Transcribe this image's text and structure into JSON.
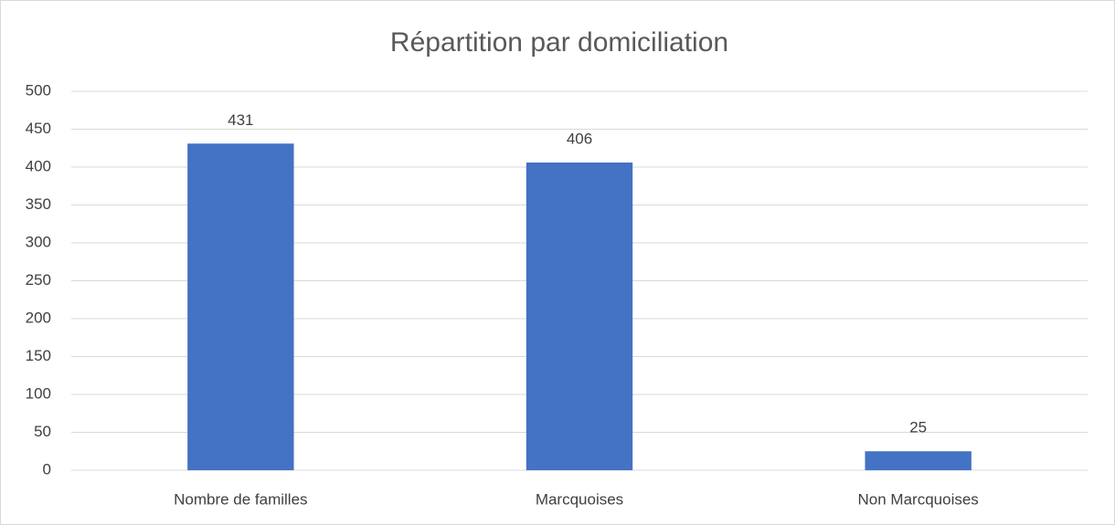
{
  "chart_data": {
    "type": "bar",
    "title": "Répartition par domiciliation",
    "categories": [
      "Nombre de familles",
      "Marcquoises",
      "Non Marcquoises"
    ],
    "values": [
      431,
      406,
      25
    ],
    "color": "#4472c4",
    "ylim": [
      0,
      500
    ],
    "yticks": [
      0,
      50,
      100,
      150,
      200,
      250,
      300,
      350,
      400,
      450,
      500
    ],
    "grid": true
  }
}
